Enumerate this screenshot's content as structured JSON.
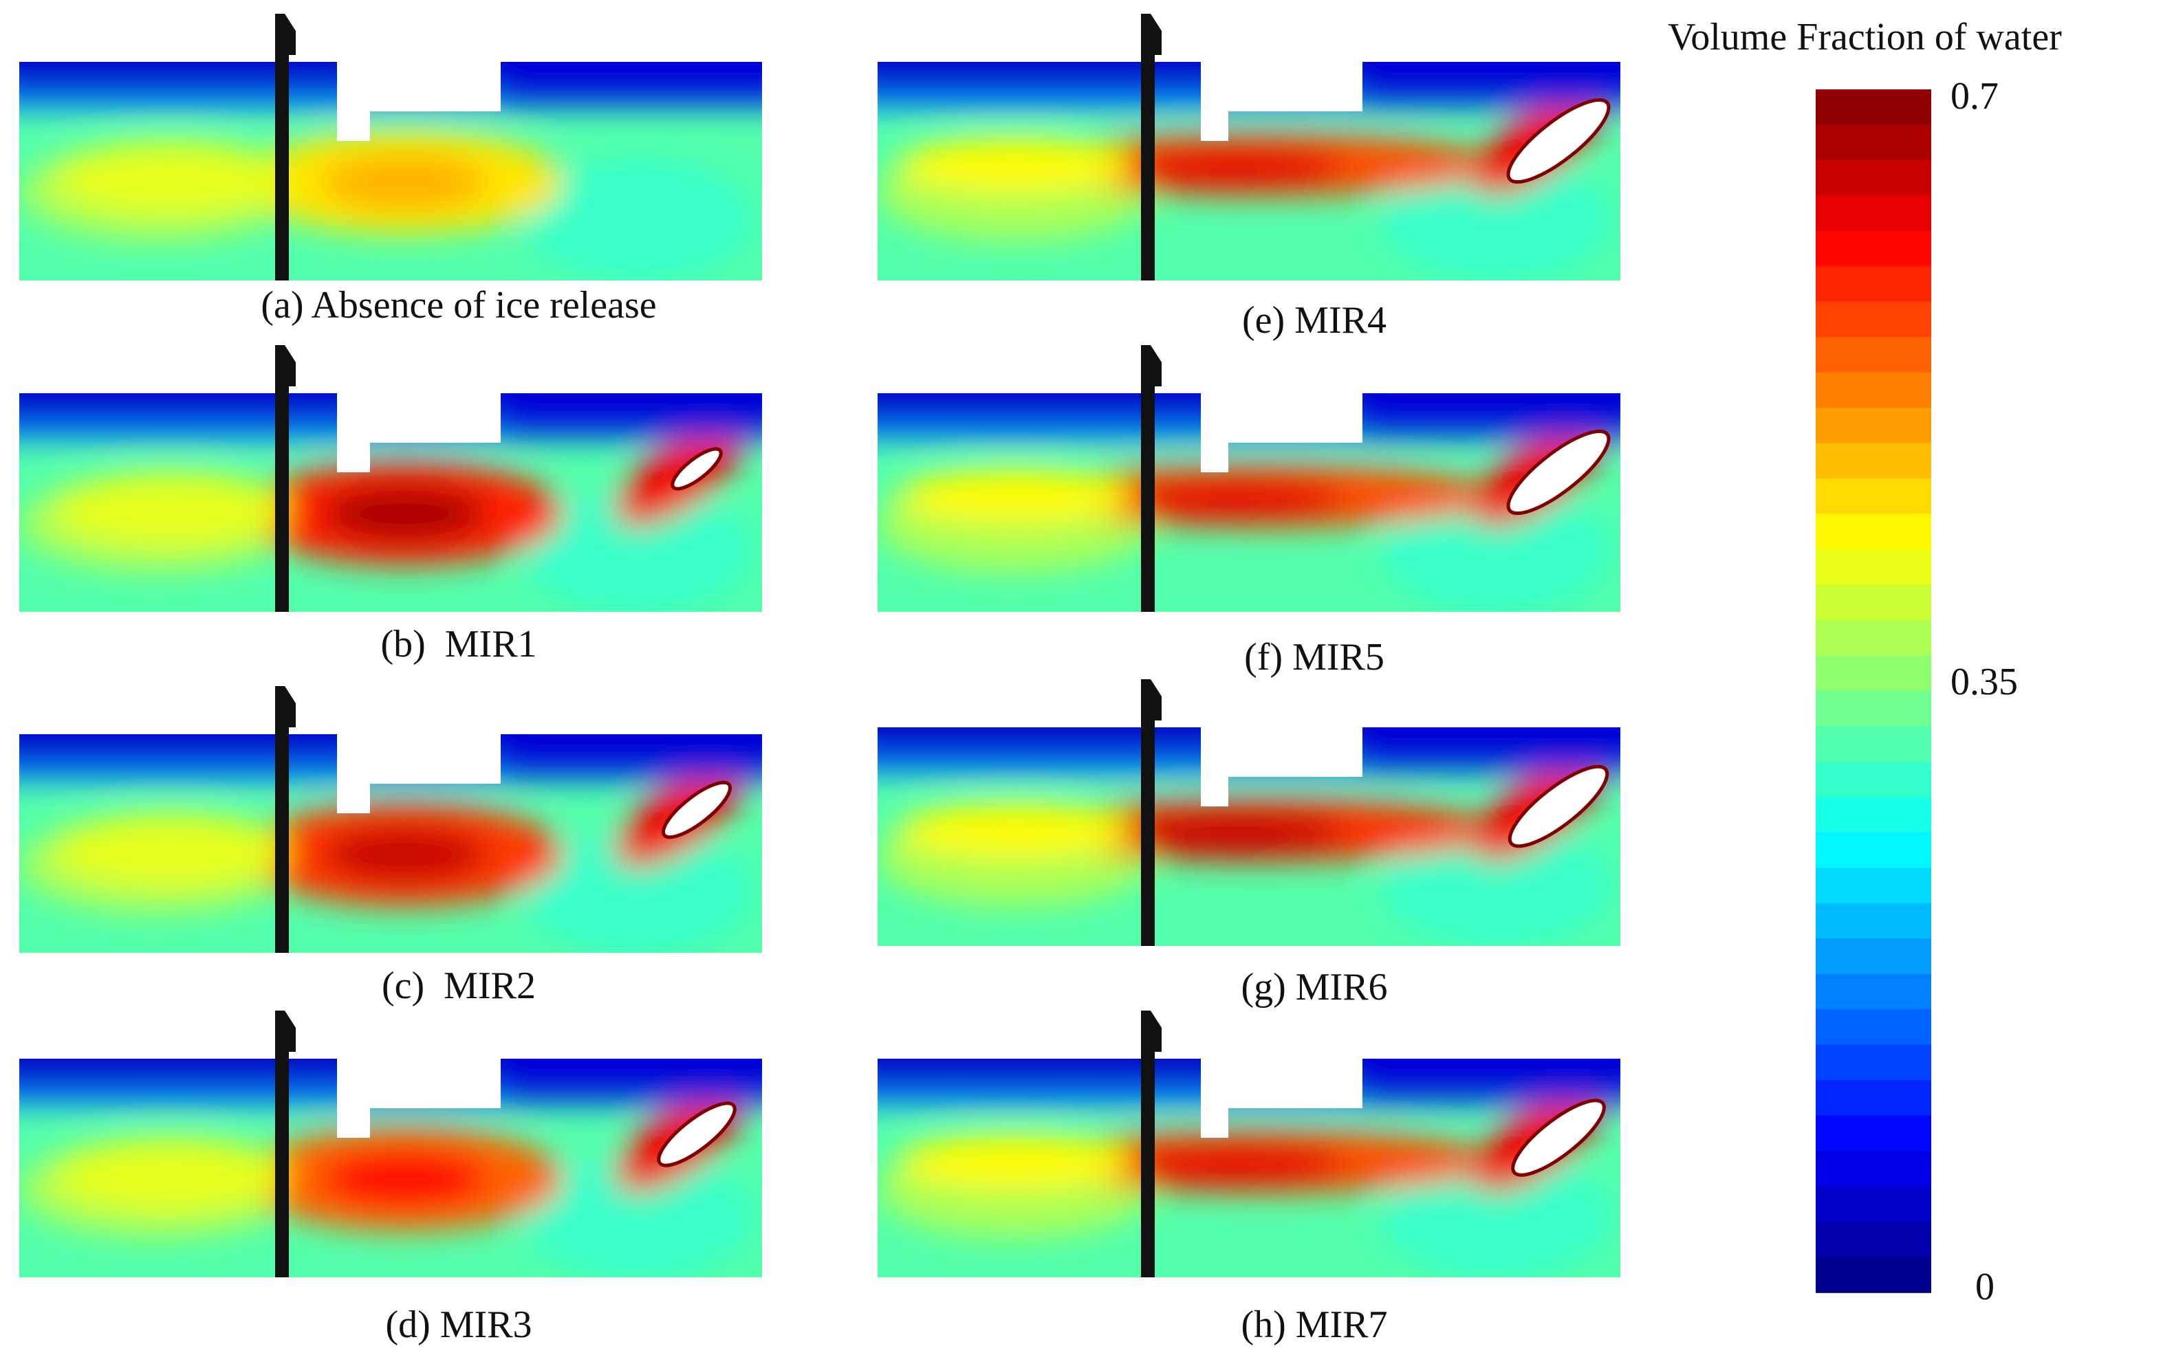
{
  "panels": [
    {
      "caption": "(a) Absence of ice release",
      "has_cavity": false,
      "intensity": 0.35,
      "cavity_size": 0
    },
    {
      "caption": "(b)  MIR1",
      "has_cavity": true,
      "intensity": 0.8,
      "cavity_size": 0.15
    },
    {
      "caption": "(c)  MIR2",
      "has_cavity": true,
      "intensity": 0.75,
      "cavity_size": 0.45
    },
    {
      "caption": "(d) MIR3",
      "has_cavity": true,
      "intensity": 0.65,
      "cavity_size": 0.6
    },
    {
      "caption": "(e) MIR4",
      "has_cavity": true,
      "intensity": 0.6,
      "cavity_size": 1.0
    },
    {
      "caption": "(f) MIR5",
      "has_cavity": true,
      "intensity": 0.6,
      "cavity_size": 1.0
    },
    {
      "caption": "(g) MIR6",
      "has_cavity": true,
      "intensity": 0.65,
      "cavity_size": 0.95
    },
    {
      "caption": "(h) MIR7",
      "has_cavity": true,
      "intensity": 0.6,
      "cavity_size": 0.85
    }
  ],
  "legend": {
    "title": "Volume Fraction of water",
    "max_label": "0.7",
    "mid_label": "0.35",
    "min_label": "0",
    "min": 0,
    "max": 0.7,
    "levels": 34
  },
  "colors": {
    "background": "#ffffff",
    "gate": "#111111",
    "cavity": "#ffffff"
  }
}
